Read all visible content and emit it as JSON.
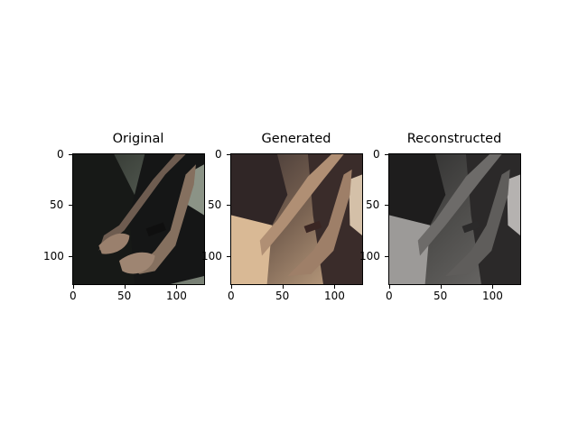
{
  "figure": {
    "panels": [
      {
        "title": "Original",
        "image": "dark clothing and two hands, one with a black wristband, against a grey-green background",
        "x_ticks": [
          "0",
          "50",
          "100"
        ],
        "y_ticks": [
          "0",
          "50",
          "100"
        ]
      },
      {
        "title": "Generated",
        "image": "blurry warm-toned version of the hands and clothing",
        "x_ticks": [
          "0",
          "50",
          "100"
        ],
        "y_ticks": [
          "0",
          "50",
          "100"
        ]
      },
      {
        "title": "Reconstructed",
        "image": "blurry grey-toned version of the hands and clothing",
        "x_ticks": [
          "0",
          "50",
          "100"
        ],
        "y_ticks": [
          "0",
          "50",
          "100"
        ]
      }
    ]
  }
}
